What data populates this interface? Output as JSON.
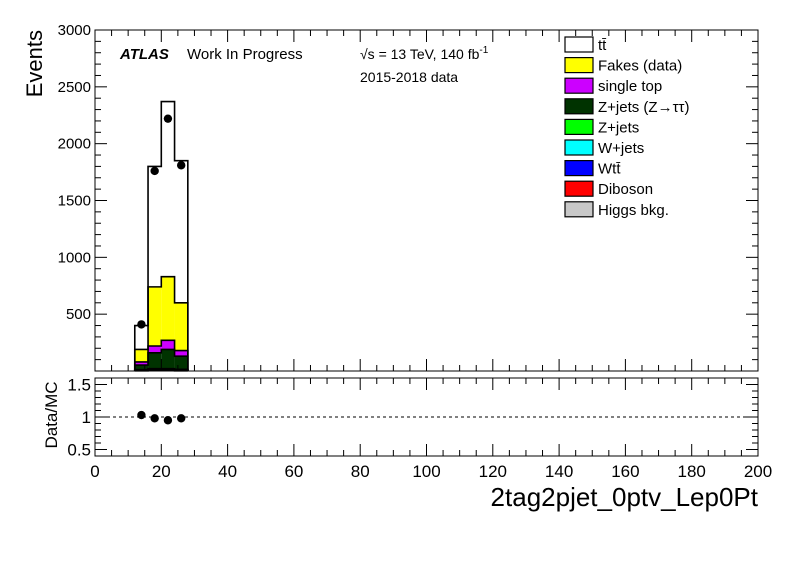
{
  "chart_data": {
    "type": "bar",
    "stacked": true,
    "main_panel": {
      "ylabel": "Events",
      "ylim": [
        0,
        3000
      ],
      "yticks": [
        500,
        1000,
        1500,
        2000,
        2500,
        3000
      ],
      "ytick_labels": [
        "500",
        "1000",
        "1500",
        "2000",
        "2500",
        "3000"
      ]
    },
    "ratio_panel": {
      "ylabel": "Data/MC",
      "ylim": [
        0.4,
        1.6
      ],
      "yticks": [
        0.5,
        1,
        1.5
      ],
      "ytick_labels": [
        "0.5",
        "1",
        "1.5"
      ],
      "reference_line": 1,
      "points": [
        {
          "x": 14,
          "y": 1.03
        },
        {
          "x": 18,
          "y": 0.98
        },
        {
          "x": 22,
          "y": 0.95
        },
        {
          "x": 26,
          "y": 0.98
        }
      ]
    },
    "xlim": [
      0,
      200
    ],
    "xticks": [
      0,
      20,
      40,
      60,
      80,
      100,
      120,
      140,
      160,
      180,
      200
    ],
    "xtick_labels": [
      "0",
      "20",
      "40",
      "60",
      "80",
      "100",
      "120",
      "140",
      "160",
      "180",
      "200"
    ],
    "xlabel": "2tag2pjet_0ptv_Lep0Pt",
    "bin_edges": [
      12,
      16,
      20,
      24,
      28
    ],
    "series": [
      {
        "name": "Higgs bkg.",
        "color": "#c8c8c8",
        "values": [
          2,
          3,
          3,
          2
        ]
      },
      {
        "name": "Diboson",
        "color": "#ff0000",
        "values": [
          3,
          5,
          5,
          4
        ]
      },
      {
        "name": "Wtt̄",
        "color": "#0000ff",
        "values": [
          2,
          4,
          4,
          3
        ]
      },
      {
        "name": "W+jets",
        "color": "#00ffff",
        "values": [
          2,
          3,
          3,
          2
        ]
      },
      {
        "name": "Z+jets",
        "color": "#00ff00",
        "values": [
          3,
          5,
          5,
          4
        ]
      },
      {
        "name": "Z+jets (Z→ττ)",
        "color": "#003300",
        "values": [
          40,
          140,
          170,
          115
        ]
      },
      {
        "name": "single top",
        "color": "#cc00ff",
        "values": [
          28,
          60,
          80,
          50
        ]
      },
      {
        "name": "Fakes (data)",
        "color": "#ffff00",
        "values": [
          110,
          520,
          560,
          420
        ]
      },
      {
        "name": "tt̄",
        "color": "#ffffff",
        "values": [
          210,
          1060,
          1540,
          1250
        ]
      }
    ],
    "data_points": {
      "x": [
        14,
        18,
        22,
        26
      ],
      "y": [
        410,
        1760,
        2220,
        1810
      ]
    },
    "legend_order": [
      "tt̄",
      "Fakes (data)",
      "single top",
      "Z+jets (Z→ττ)",
      "Z+jets",
      "W+jets",
      "Wtt̄",
      "Diboson",
      "Higgs bkg."
    ],
    "legend_placement": "top-right",
    "grid": false
  },
  "annotations": {
    "atlas": "ATLAS",
    "wip": "Work In Progress",
    "energy_prefix": "√s = 13 TeV, 140 fb",
    "energy_sup": "-1",
    "dataset": "2015-2018 data"
  }
}
